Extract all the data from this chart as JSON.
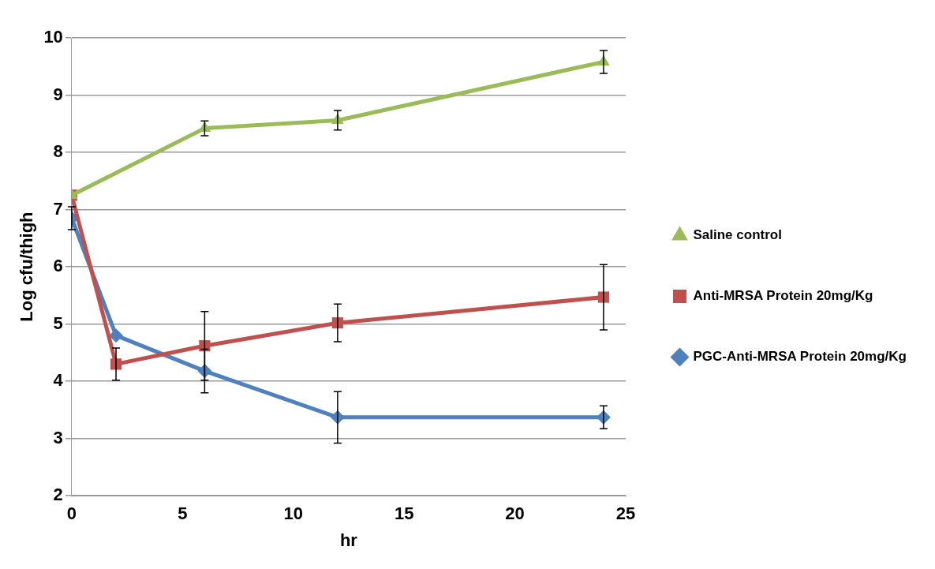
{
  "chart_data": {
    "type": "line",
    "xlabel": "hr",
    "ylabel": "Log cfu/thigh",
    "x": [
      0,
      2,
      6,
      12,
      24
    ],
    "series": [
      {
        "name": "Saline control",
        "color": "#9bbb59",
        "marker": "triangle",
        "x": [
          0,
          6,
          12,
          24
        ],
        "values": [
          7.25,
          8.42,
          8.56,
          9.58
        ],
        "errors": [
          null,
          0.13,
          0.17,
          0.2
        ]
      },
      {
        "name": "Anti-MRSA Protein 20mg/Kg",
        "color": "#c0504d",
        "marker": "square",
        "values": [
          7.25,
          4.3,
          4.62,
          5.02,
          5.47
        ],
        "errors": [
          null,
          0.28,
          0.6,
          0.33,
          0.57
        ]
      },
      {
        "name": "PGC-Anti-MRSA Protein 20mg/Kg",
        "color": "#4f81bd",
        "marker": "diamond",
        "values": [
          6.85,
          4.8,
          4.18,
          3.37,
          3.37
        ],
        "errors": [
          0.2,
          null,
          0.38,
          0.45,
          0.2
        ]
      }
    ],
    "xlim": [
      0,
      25
    ],
    "xticks": [
      0,
      5,
      10,
      15,
      20,
      25
    ],
    "ylim": [
      2,
      10
    ],
    "yticks": [
      2,
      3,
      4,
      5,
      6,
      7,
      8,
      9,
      10
    ],
    "grid": "y",
    "legend": "right"
  }
}
